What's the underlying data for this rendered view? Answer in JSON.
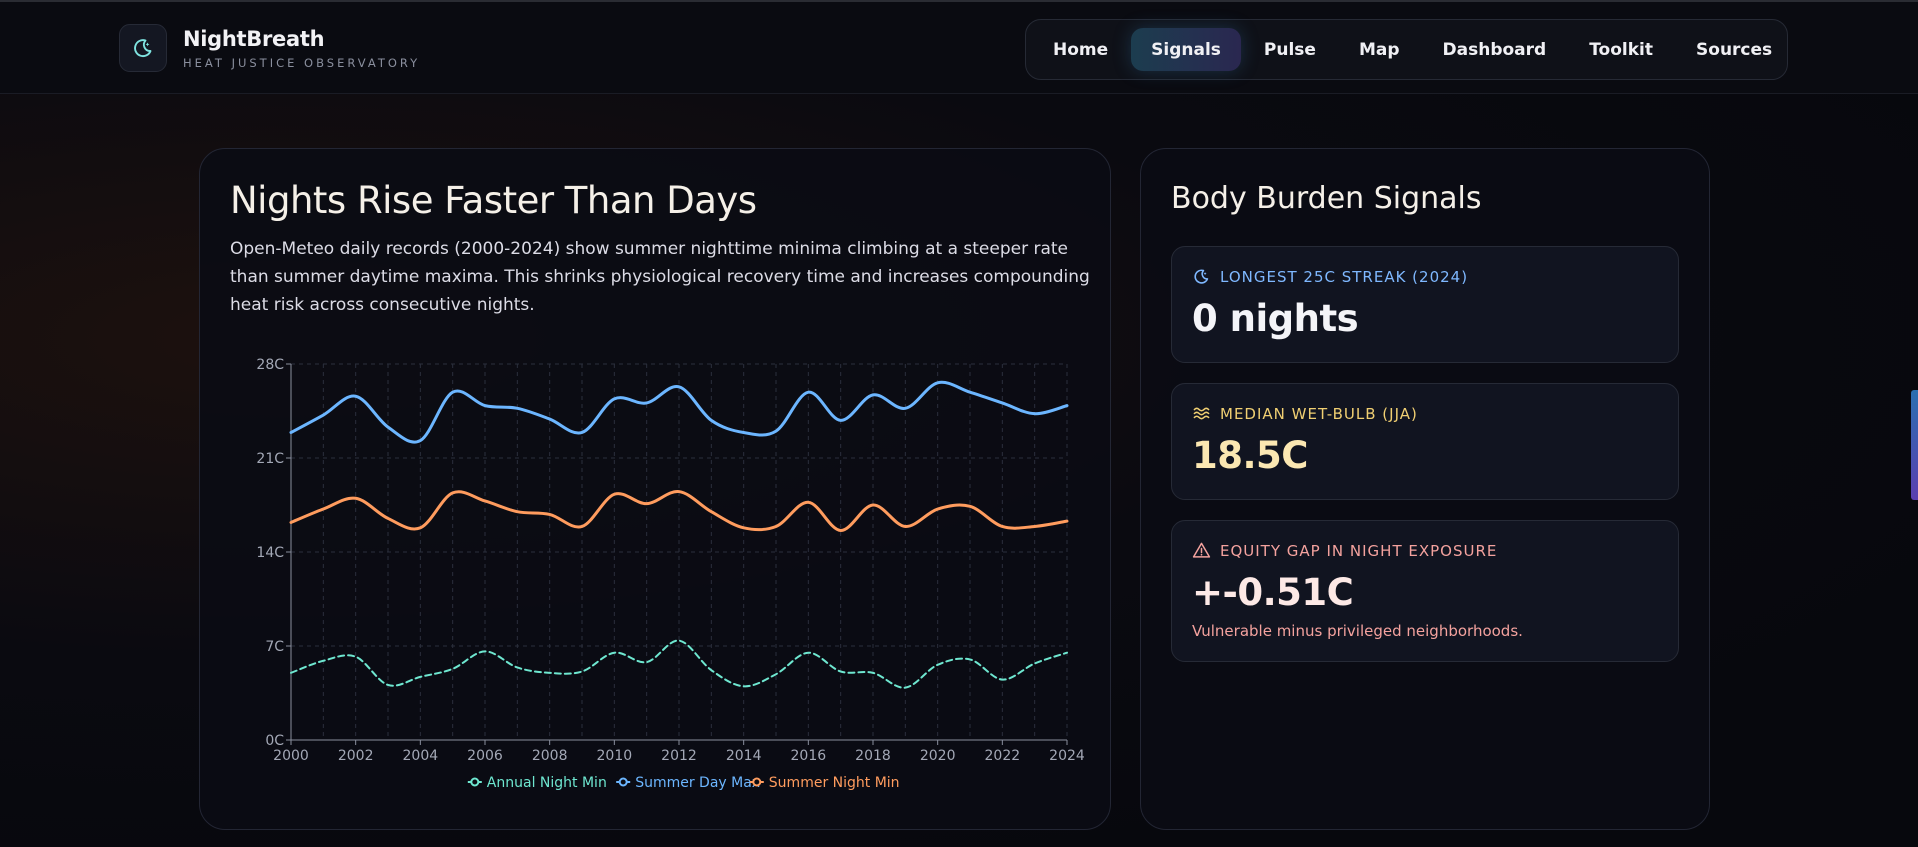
{
  "brand": {
    "name": "NightBreath",
    "subtitle": "HEAT JUSTICE OBSERVATORY",
    "logo_icon": "moon-icon"
  },
  "nav": {
    "items": [
      {
        "label": "Home",
        "active": false
      },
      {
        "label": "Signals",
        "active": true
      },
      {
        "label": "Pulse",
        "active": false
      },
      {
        "label": "Map",
        "active": false
      },
      {
        "label": "Dashboard",
        "active": false
      },
      {
        "label": "Toolkit",
        "active": false
      },
      {
        "label": "Sources",
        "active": false
      }
    ]
  },
  "main": {
    "title": "Nights Rise Faster Than Days",
    "description": "Open-Meteo daily records (2000-2024) show summer nighttime minima climbing at a steeper rate than summer daytime maxima. This shrinks physiological recovery time and increases compounding heat risk across consecutive nights."
  },
  "chart_data": {
    "type": "line",
    "x": [
      2000,
      2001,
      2002,
      2003,
      2004,
      2005,
      2006,
      2007,
      2008,
      2009,
      2010,
      2011,
      2012,
      2013,
      2014,
      2015,
      2016,
      2017,
      2018,
      2019,
      2020,
      2021,
      2022,
      2023,
      2024
    ],
    "x_ticks": [
      "2000",
      "2002",
      "2004",
      "2006",
      "2008",
      "2010",
      "2012",
      "2014",
      "2016",
      "2018",
      "2020",
      "2022",
      "2024"
    ],
    "y_ticks": [
      "0C",
      "7C",
      "14C",
      "21C",
      "28C"
    ],
    "ylim": [
      0,
      28
    ],
    "grid": true,
    "legend": "bottom",
    "series": [
      {
        "name": "Annual Night Min",
        "color": "#6ee7d0",
        "dash": true,
        "values": [
          5.0,
          5.9,
          6.2,
          4.1,
          4.7,
          5.3,
          6.6,
          5.4,
          5.0,
          5.1,
          6.5,
          5.8,
          7.4,
          5.2,
          4.0,
          4.9,
          6.5,
          5.1,
          5.0,
          3.9,
          5.6,
          6.0,
          4.5,
          5.7,
          6.5
        ]
      },
      {
        "name": "Summer Day Max",
        "color": "#6cb6ff",
        "dash": false,
        "values": [
          22.9,
          24.2,
          25.6,
          23.3,
          22.3,
          25.9,
          24.9,
          24.7,
          23.9,
          22.9,
          25.4,
          25.1,
          26.3,
          23.8,
          22.9,
          23.0,
          25.9,
          23.8,
          25.7,
          24.7,
          26.6,
          25.9,
          25.1,
          24.3,
          24.9
        ]
      },
      {
        "name": "Summer Night Min",
        "color": "#ff9c5e",
        "dash": false,
        "values": [
          16.2,
          17.2,
          18.0,
          16.5,
          15.8,
          18.4,
          17.8,
          17.0,
          16.8,
          15.9,
          18.3,
          17.6,
          18.5,
          17.0,
          15.8,
          15.9,
          17.7,
          15.6,
          17.5,
          15.9,
          17.2,
          17.4,
          15.9,
          15.9,
          16.3
        ]
      }
    ]
  },
  "signals": {
    "title": "Body Burden Signals",
    "metrics": [
      {
        "label": "LONGEST 25C STREAK (2024)",
        "value": "0 nights",
        "icon": "moon-icon",
        "label_color": "#7fb8ff",
        "value_color": "#f4f4f8"
      },
      {
        "label": "MEDIAN WET-BULB (JJA)",
        "value": "18.5C",
        "icon": "waves-icon",
        "label_color": "#f0cf72",
        "value_color": "#fbe7b2"
      },
      {
        "label": "EQUITY GAP IN NIGHT EXPOSURE",
        "value": "+-0.51C",
        "note": "Vulnerable minus privileged neighborhoods.",
        "icon": "warning-icon",
        "label_color": "#f4a29e",
        "value_color": "#fde9e6"
      }
    ]
  }
}
